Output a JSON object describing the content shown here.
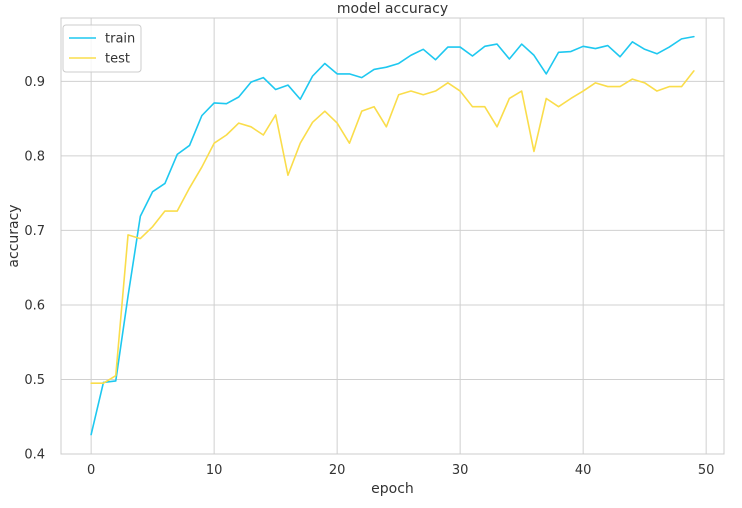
{
  "chart_data": {
    "type": "line",
    "title": "model accuracy",
    "xlabel": "epoch",
    "ylabel": "accuracy",
    "xlim": [
      -2.45,
      51.45
    ],
    "ylim": [
      0.4,
      0.985
    ],
    "xticks": [
      0,
      10,
      20,
      30,
      40,
      50
    ],
    "yticks": [
      0.4,
      0.5,
      0.6,
      0.7,
      0.8,
      0.9
    ],
    "grid": true,
    "legend_position": "top-left",
    "x": [
      0,
      1,
      2,
      3,
      4,
      5,
      6,
      7,
      8,
      9,
      10,
      11,
      12,
      13,
      14,
      15,
      16,
      17,
      18,
      19,
      20,
      21,
      22,
      23,
      24,
      25,
      26,
      27,
      28,
      29,
      30,
      31,
      32,
      33,
      34,
      35,
      36,
      37,
      38,
      39,
      40,
      41,
      42,
      43,
      44,
      45,
      46,
      47,
      48,
      49
    ],
    "series": [
      {
        "name": "train",
        "color": "#1ec8f0",
        "values": [
          0.426,
          0.496,
          0.498,
          0.612,
          0.719,
          0.752,
          0.763,
          0.802,
          0.814,
          0.854,
          0.871,
          0.87,
          0.879,
          0.899,
          0.905,
          0.889,
          0.895,
          0.876,
          0.907,
          0.924,
          0.91,
          0.91,
          0.905,
          0.916,
          0.919,
          0.924,
          0.935,
          0.943,
          0.929,
          0.946,
          0.946,
          0.934,
          0.947,
          0.95,
          0.93,
          0.95,
          0.935,
          0.91,
          0.939,
          0.94,
          0.947,
          0.944,
          0.948,
          0.933,
          0.953,
          0.943,
          0.937,
          0.946,
          0.957,
          0.96
        ]
      },
      {
        "name": "test",
        "color": "#fadd4b",
        "values": [
          0.495,
          0.495,
          0.505,
          0.694,
          0.689,
          0.705,
          0.726,
          0.726,
          0.757,
          0.785,
          0.817,
          0.828,
          0.844,
          0.839,
          0.828,
          0.855,
          0.774,
          0.817,
          0.845,
          0.86,
          0.844,
          0.817,
          0.86,
          0.866,
          0.839,
          0.882,
          0.887,
          0.882,
          0.887,
          0.898,
          0.887,
          0.866,
          0.866,
          0.839,
          0.877,
          0.887,
          0.806,
          0.877,
          0.866,
          0.877,
          0.887,
          0.898,
          0.893,
          0.893,
          0.903,
          0.898,
          0.887,
          0.893,
          0.893,
          0.914
        ]
      }
    ]
  }
}
